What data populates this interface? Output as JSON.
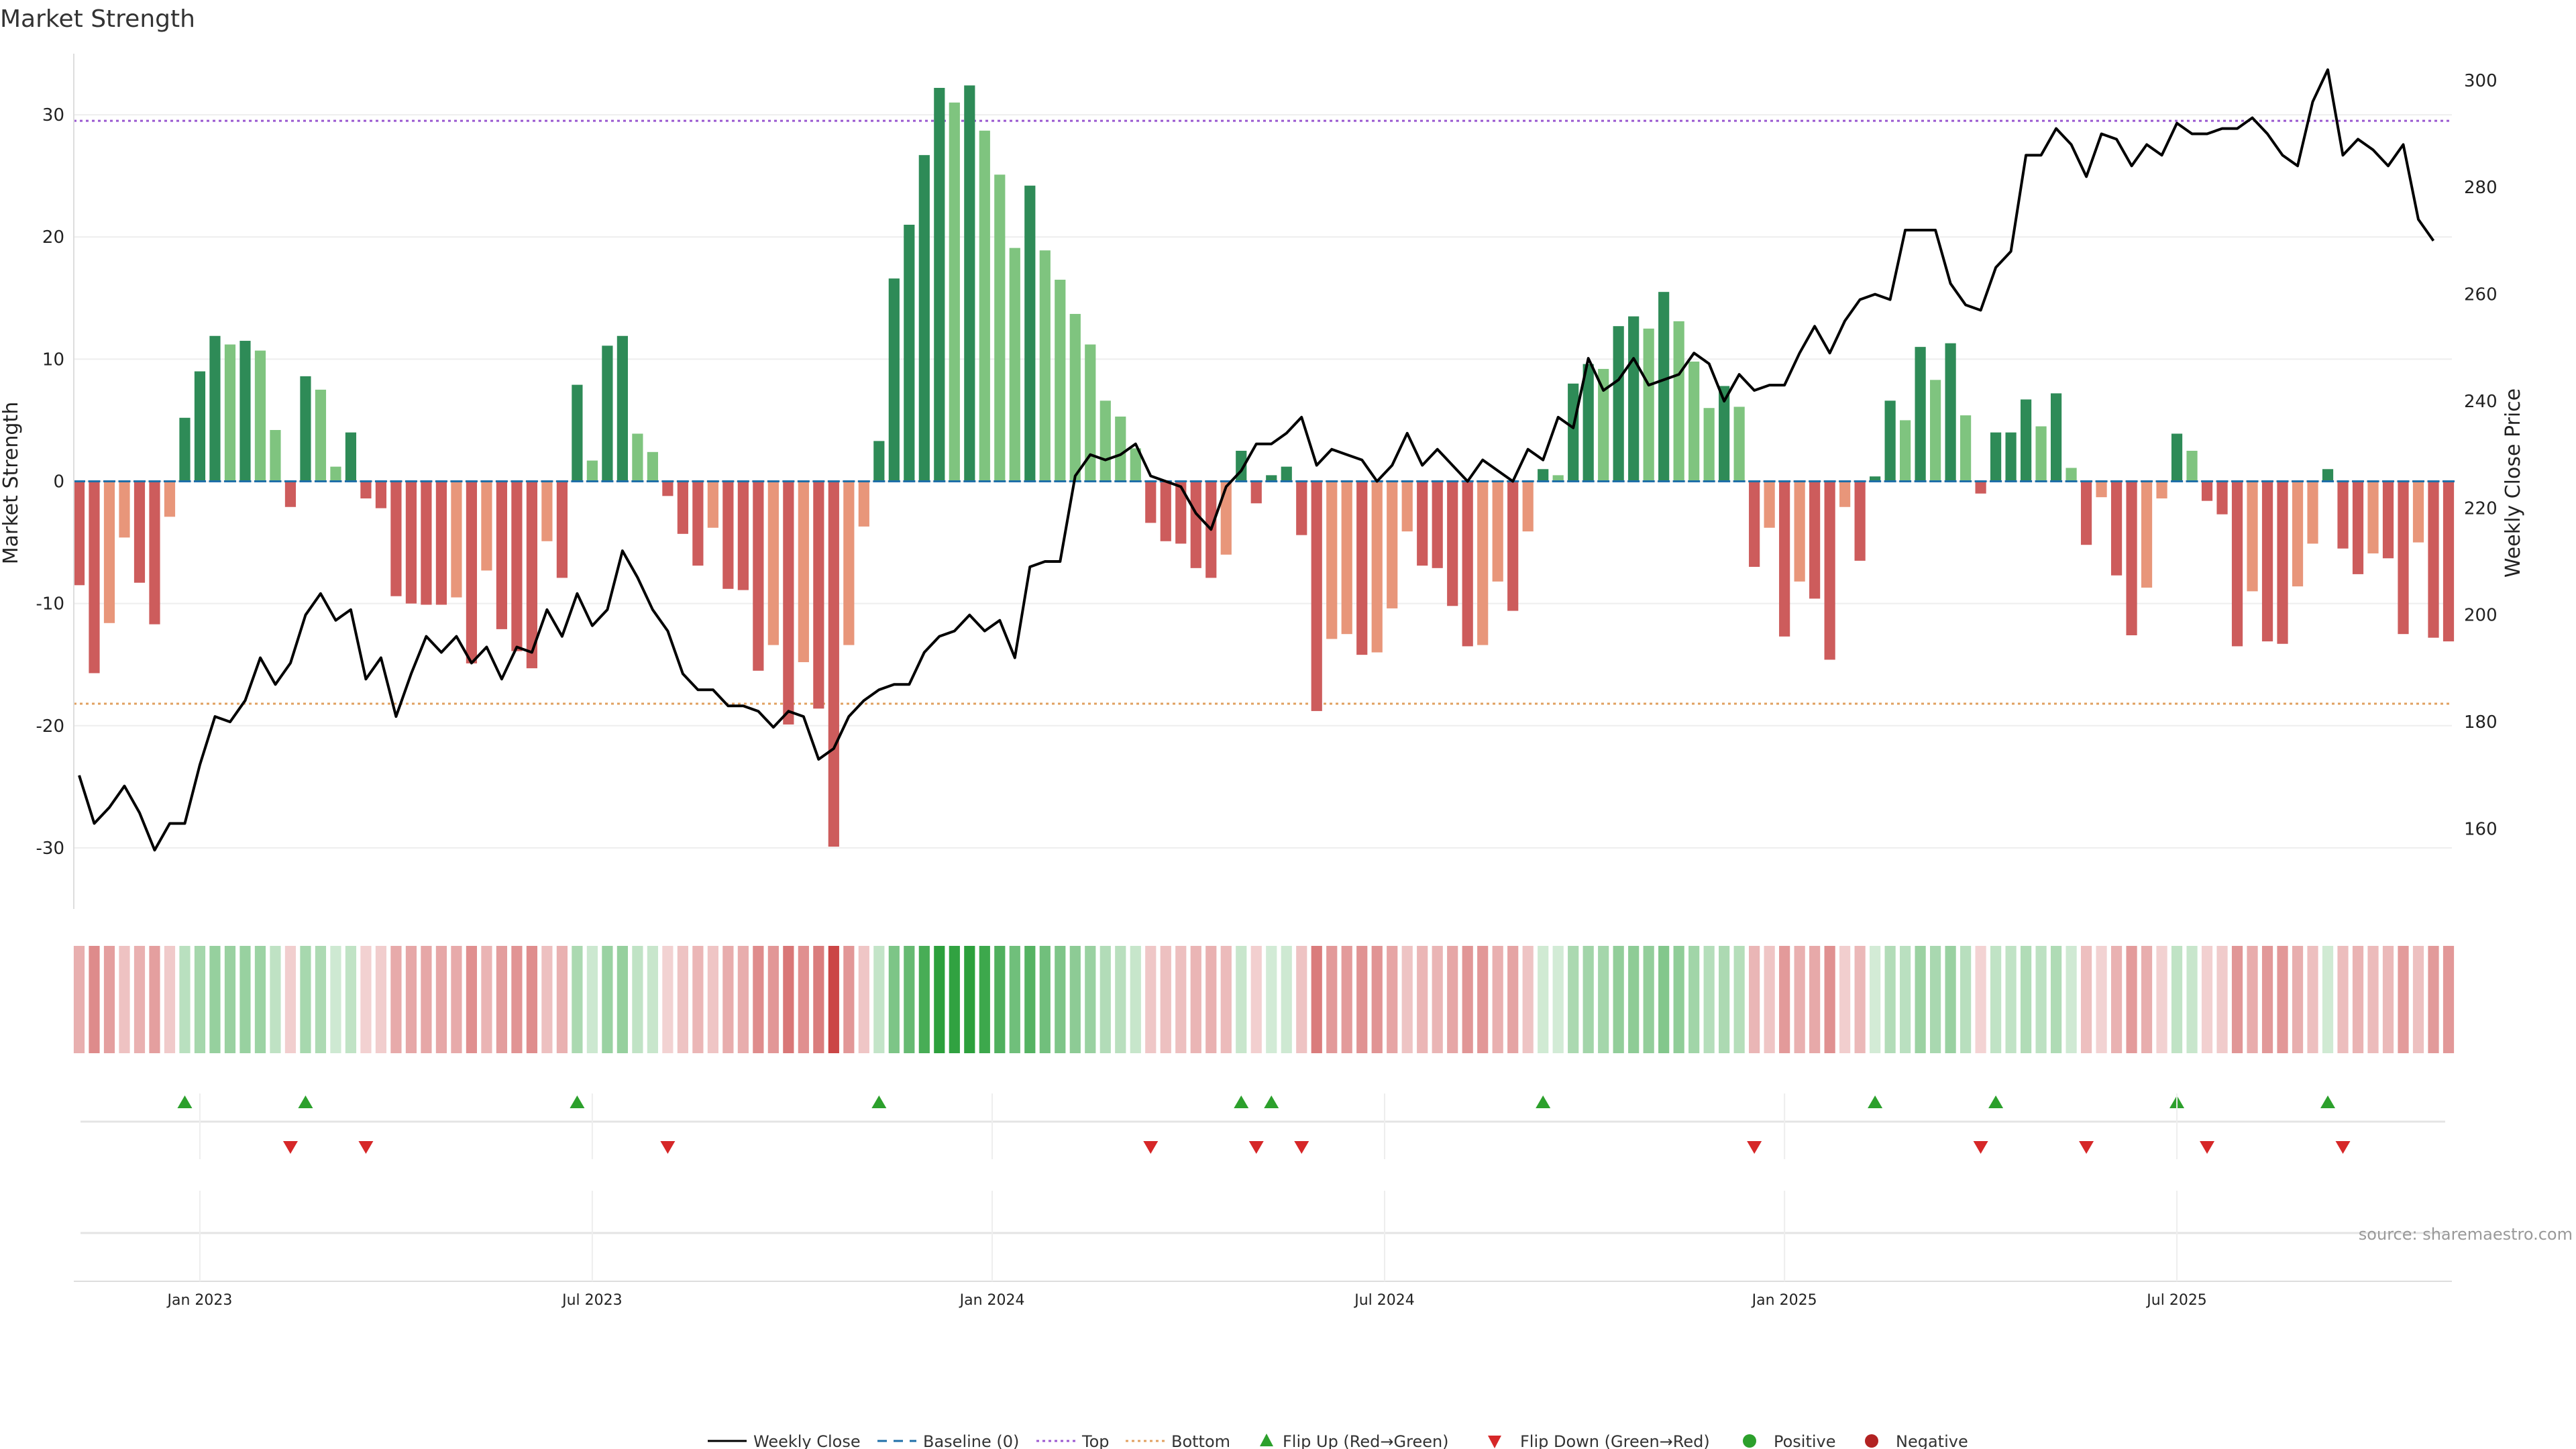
{
  "chart_data": {
    "type": "bar",
    "title": "Market Strength",
    "ylabel": "Market Strength",
    "y2label": "Weekly Close Price",
    "ylim": [
      -35,
      35
    ],
    "y2lim": [
      145,
      305
    ],
    "yticks": [
      30,
      20,
      10,
      0,
      -10,
      -20,
      -30
    ],
    "y2ticks": [
      300,
      280,
      260,
      240,
      220,
      200,
      180,
      160
    ],
    "xticks": [
      "Jan 2023",
      "Jul 2023",
      "Jan 2024",
      "Jul 2024",
      "Jan 2025",
      "Jul 2025"
    ],
    "xtick_weeks": [
      8,
      34,
      60.5,
      86.5,
      113,
      139
    ],
    "top_line": 29.5,
    "bottom_line": -18.2,
    "colors": {
      "dark_green": "#2e8b57",
      "light_green": "#7fc47f",
      "dark_red": "#cd5c5c",
      "light_red": "#e8967a",
      "price": "#000000",
      "top": "#9b59d0",
      "bottom": "#e0a060",
      "baseline": "#1f6fa8",
      "flip_up": "#2ca02c",
      "flip_down": "#d62728",
      "positive": "#2ca02c",
      "negative": "#b22222",
      "grid": "#eeeeee"
    },
    "strength": [
      -8.5,
      -15.7,
      -11.6,
      -4.6,
      -8.3,
      -11.7,
      -2.9,
      5.2,
      9,
      11.9,
      11.2,
      11.5,
      10.7,
      4.2,
      -2.1,
      8.6,
      7.5,
      1.2,
      4,
      -1.4,
      -2.2,
      -9.4,
      -10,
      -10.1,
      -10.1,
      -9.5,
      -14.9,
      -7.3,
      -12.1,
      -13.9,
      -15.3,
      -4.9,
      -7.9,
      7.9,
      1.7,
      11.1,
      11.9,
      3.9,
      2.4,
      -1.2,
      -4.3,
      -6.9,
      -3.8,
      -8.8,
      -8.9,
      -15.5,
      -13.4,
      -19.9,
      -14.8,
      -18.6,
      -29.9,
      -13.4,
      -3.7,
      3.3,
      16.6,
      21,
      26.7,
      32.2,
      31,
      32.4,
      28.7,
      25.1,
      19.1,
      24.2,
      18.9,
      16.5,
      13.7,
      11.2,
      6.6,
      5.3,
      2.7,
      -3.4,
      -4.9,
      -5.1,
      -7.1,
      -7.9,
      -6,
      2.5,
      -1.8,
      0.5,
      1.2,
      -4.4,
      -18.8,
      -12.9,
      -12.5,
      -14.2,
      -14,
      -10.4,
      -4.1,
      -6.9,
      -7.1,
      -10.2,
      -13.5,
      -13.4,
      -8.2,
      -10.6,
      -4.1,
      1,
      0.5,
      8,
      9.6,
      9.2,
      12.7,
      13.5,
      12.5,
      15.5,
      13.1,
      9.8,
      6,
      7.8,
      6.1,
      -7,
      -3.8,
      -12.7,
      -8.2,
      -9.6,
      -14.6,
      -2.1,
      -6.5,
      0.4,
      6.6,
      5,
      11,
      8.3,
      11.3,
      5.4,
      -1,
      4,
      4,
      6.7,
      4.5,
      7.2,
      1.1,
      -5.2,
      -1.3,
      -7.7,
      -12.6,
      -8.7,
      -1.4,
      3.9,
      2.5,
      -1.6,
      -2.7,
      -13.5,
      -9,
      -13.1,
      -13.3,
      -8.6,
      -5.1,
      1,
      -5.5,
      -7.6,
      -5.9,
      -6.3,
      -12.5,
      -5,
      -12.8,
      -13.1
    ],
    "close": [
      170,
      161,
      164,
      168,
      163,
      156,
      161,
      161,
      172,
      181,
      180,
      184,
      192,
      187,
      191,
      200,
      204,
      199,
      201,
      188,
      192,
      181,
      189,
      196,
      193,
      196,
      191,
      194,
      188,
      194,
      193,
      201,
      196,
      204,
      198,
      201,
      212,
      207,
      201,
      197,
      189,
      186,
      186,
      183,
      183,
      182,
      179,
      182,
      181,
      173,
      175,
      181,
      184,
      186,
      187,
      187,
      193,
      196,
      197,
      200,
      197,
      199,
      192,
      209,
      210,
      210,
      226,
      230,
      229,
      230,
      232,
      226,
      225,
      224,
      219,
      216,
      224,
      227,
      232,
      232,
      234,
      237,
      228,
      231,
      230,
      229,
      225,
      228,
      234,
      228,
      231,
      228,
      225,
      229,
      227,
      225,
      231,
      229,
      237,
      235,
      248,
      242,
      244,
      248,
      243,
      244,
      245,
      249,
      247,
      240,
      245,
      242,
      243,
      243,
      249,
      254,
      249,
      255,
      259,
      260,
      259,
      272,
      272,
      272,
      262,
      258,
      257,
      265,
      268,
      286,
      286,
      291,
      288,
      282,
      290,
      289,
      284,
      288,
      286,
      292,
      290,
      290,
      291,
      291,
      293,
      290,
      286,
      284,
      296,
      302,
      286,
      289,
      287,
      284,
      288,
      274,
      270
    ]
  },
  "legend": {
    "weekly_close": "Weekly Close",
    "baseline": "Baseline (0)",
    "top": "Top",
    "bottom": "Bottom",
    "flip_up": "Flip Up (Red→Green)",
    "flip_down": "Flip Down (Green→Red)",
    "positive": "Positive",
    "negative": "Negative"
  },
  "source": "source: sharemaestro.com"
}
